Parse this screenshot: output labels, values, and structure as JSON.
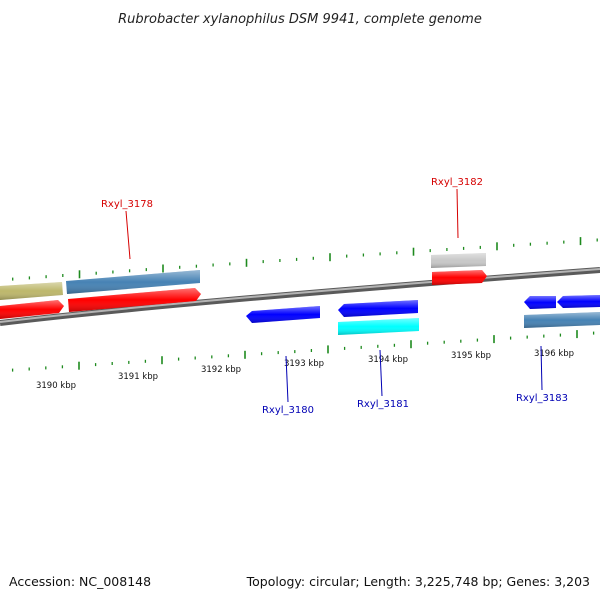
{
  "title": "Rubrobacter xylanophilus DSM 9941, complete genome",
  "footer": {
    "accession": "Accession: NC_008148",
    "summary": "Topology: circular; Length: 3,225,748 bp; Genes: 3,203"
  },
  "colors": {
    "tick": "#1e8a1e",
    "backbone": "#8a8a8a",
    "label_forward": "#d60000",
    "label_reverse": "#0000b4",
    "gene_red": "#ff0000",
    "gene_blue": "#4682b4",
    "gene_olive": "#bdb76b",
    "gene_gray": "#c8c8c8",
    "gene_deep_blue": "#0000ff",
    "gene_cyan": "#00ffff"
  },
  "scale_labels": [
    "3190 kbp",
    "3191 kbp",
    "3192 kbp",
    "3193 kbp",
    "3194 kbp",
    "3195 kbp",
    "3196 kbp"
  ],
  "gene_labels": {
    "forward": [
      "Rxyl_3178",
      "Rxyl_3182"
    ],
    "reverse": [
      "Rxyl_3180",
      "Rxyl_3181",
      "Rxyl_3183"
    ]
  }
}
